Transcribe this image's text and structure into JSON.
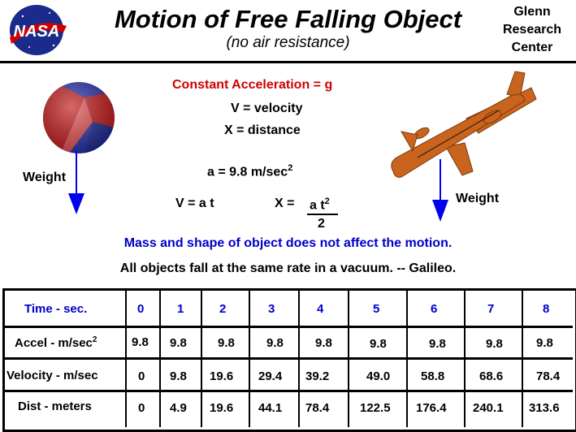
{
  "header": {
    "title": "Motion of Free Falling Object",
    "subtitle": "(no air resistance)",
    "center_lines": [
      "Glenn",
      "Research",
      "Center"
    ],
    "logo_text": "NASA"
  },
  "equations": {
    "constant_accel": "Constant Acceleration = g",
    "v_def": "V = velocity",
    "x_def": "X = distance",
    "a_value": "a = 9.8 m/sec",
    "a_exp": "2",
    "v_eq": "V = a t",
    "x_eq": "X =",
    "x_num": "a t",
    "x_exp": "2",
    "x_den": "2"
  },
  "notes": {
    "mass": "Mass and shape of object does not affect the motion.",
    "galileo": "All objects fall at the same rate in a vacuum. -- Galileo."
  },
  "labels": {
    "weight_left": "Weight",
    "weight_right": "Weight"
  },
  "colors": {
    "title": "#000000",
    "red": "#d10000",
    "blue": "#0000cc",
    "plane": "#c8641e"
  },
  "table": {
    "header_label": "Time - sec.",
    "times": [
      "0",
      "1",
      "2",
      "3",
      "4",
      "5",
      "6",
      "7",
      "8"
    ],
    "rows": [
      {
        "label": "Accel - m/sec",
        "label_exp": "2",
        "values": [
          "9.8",
          "9.8",
          "9.8",
          "9.8",
          "9.8",
          "9.8",
          "9.8",
          "9.8",
          "9.8"
        ]
      },
      {
        "label": "Velocity - m/sec",
        "label_exp": "",
        "values": [
          "0",
          "9.8",
          "19.6",
          "29.4",
          "39.2",
          "49.0",
          "58.8",
          "68.6",
          "78.4"
        ]
      },
      {
        "label": "Dist - meters",
        "label_exp": "",
        "values": [
          "0",
          "4.9",
          "19.6",
          "44.1",
          "78.4",
          "122.5",
          "176.4",
          "240.1",
          "313.6"
        ]
      }
    ]
  }
}
